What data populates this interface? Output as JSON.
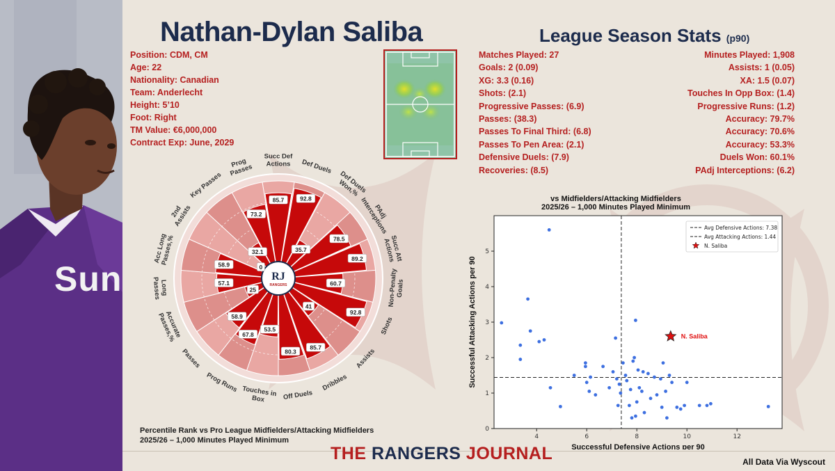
{
  "player": {
    "name": "Nathan-Dylan Saliba",
    "info": [
      "Position: CDM, CM",
      "Age: 22",
      "Nationality: Canadian",
      "Team: Anderlecht",
      "Height: 5’10",
      "Foot: Right",
      "TM Value: €6,000,000",
      "Contract Exp: June, 2029"
    ],
    "shirt_text": "Sun"
  },
  "season_stats": {
    "title": "League Season Stats",
    "unit": "(p90)",
    "left": [
      "Matches Played: 27",
      "Goals: 2 (0.09)",
      "XG: 3.3 (0.16)",
      "Shots: (2.1)",
      "Progressive Passes: (6.9)",
      "Passes: (38.3)",
      "Passes To Final Third: (6.8)",
      "Passes To Pen Area: (2.1)",
      "Defensive Duels: (7.9)",
      "Recoveries: (8.5)"
    ],
    "right": [
      "Minutes Played: 1,908",
      "Assists: 1 (0.05)",
      "XA: 1.5 (0.07)",
      "Touches In Opp Box: (1.4)",
      "Progressive Runs: (1.2)",
      "Accuracy: 79.7%",
      "Accuracy: 70.6%",
      "Accuracy: 53.3%",
      "Duels Won: 60.1%",
      "PAdj Interceptions: (6.2)"
    ]
  },
  "radar_caption": [
    "Percentile Rank vs Pro League Midfielders/Attacking Midfielders",
    "2025/26 – 1,000 Minutes Played Minimum"
  ],
  "scatter_caption": [
    "vs  Midfielders/Attacking Midfielders",
    "2025/26 – 1,000 Minutes Played Minimum"
  ],
  "brand": {
    "the": "THE ",
    "rangers": "RANGERS",
    "journal": " JOURNAL"
  },
  "logo": {
    "initials": "RJ",
    "sub1": "THE",
    "sub2": "RANGERS",
    "sub3": "JOURNAL"
  },
  "credit": "All Data Via Wyscout",
  "colors": {
    "navy": "#1c2b4c",
    "red": "#b51f1f",
    "radar_fill": "#c6090a",
    "radar_bg": "#e9a7a3",
    "radar_bg_alt": "#dd8f8b",
    "scatter_point": "#3d6fe0"
  },
  "chart_data": [
    {
      "type": "radar",
      "title": "",
      "range": [
        0,
        100
      ],
      "categories": [
        "Succ Def Actions",
        "Def Duels",
        "Def Duels Won,%",
        "PAdj Interceptions",
        "Succ Att Actions",
        "Non-Penalty Goals",
        "Shots",
        "Assists",
        "Dribbles",
        "Off Duels",
        "Touches in Box",
        "Prog Runs",
        "Passes",
        "Accurate Passes,%",
        "Long Passes",
        "Acc Long Passes,%",
        "2nd Assists",
        "Key Passes",
        "Prog Passes"
      ],
      "values": [
        85.7,
        92.8,
        35.7,
        78.5,
        89.2,
        60.7,
        92.8,
        41,
        85.7,
        80.3,
        53.5,
        67.8,
        58.9,
        25,
        57.1,
        58.9,
        0,
        32.1,
        73.2
      ]
    },
    {
      "type": "scatter",
      "xlabel": "Successful Defensive Actions per 90",
      "ylabel": "Successful Attacking Actions per 90",
      "xlim": [
        2.3,
        13.8
      ],
      "ylim": [
        0,
        6
      ],
      "xticks": [
        4,
        6,
        8,
        10,
        12
      ],
      "yticks": [
        0,
        1,
        2,
        3,
        4,
        5
      ],
      "reference_lines": [
        {
          "name": "Avg Defensive Actions: 7.38",
          "axis": "x",
          "value": 7.38
        },
        {
          "name": "Avg Attacking Actions: 1.44",
          "axis": "y",
          "value": 1.44
        }
      ],
      "highlight": {
        "name": "N. Saliba",
        "x": 9.35,
        "y": 2.6
      },
      "points": [
        [
          4.5,
          5.6
        ],
        [
          3.65,
          3.65
        ],
        [
          2.6,
          2.98
        ],
        [
          3.75,
          2.75
        ],
        [
          4.1,
          2.45
        ],
        [
          4.3,
          2.5
        ],
        [
          3.35,
          2.35
        ],
        [
          3.35,
          1.95
        ],
        [
          4.55,
          1.15
        ],
        [
          4.95,
          0.62
        ],
        [
          5.5,
          1.5
        ],
        [
          5.95,
          1.75
        ],
        [
          5.95,
          1.85
        ],
        [
          6.0,
          1.3
        ],
        [
          6.1,
          1.05
        ],
        [
          6.15,
          1.45
        ],
        [
          6.35,
          0.95
        ],
        [
          6.65,
          1.75
        ],
        [
          6.9,
          1.15
        ],
        [
          7.05,
          1.6
        ],
        [
          7.15,
          2.55
        ],
        [
          7.2,
          1.4
        ],
        [
          7.25,
          0.65
        ],
        [
          7.3,
          1.25
        ],
        [
          7.35,
          1.0
        ],
        [
          7.45,
          1.85
        ],
        [
          7.55,
          1.5
        ],
        [
          7.6,
          1.35
        ],
        [
          7.7,
          0.65
        ],
        [
          7.75,
          1.1
        ],
        [
          7.8,
          0.3
        ],
        [
          7.85,
          1.9
        ],
        [
          7.9,
          2.0
        ],
        [
          7.95,
          3.05
        ],
        [
          7.95,
          0.35
        ],
        [
          8.0,
          0.75
        ],
        [
          8.05,
          1.65
        ],
        [
          8.1,
          1.15
        ],
        [
          8.2,
          1.05
        ],
        [
          8.25,
          1.6
        ],
        [
          8.3,
          0.45
        ],
        [
          8.45,
          1.55
        ],
        [
          8.55,
          0.85
        ],
        [
          8.7,
          1.45
        ],
        [
          8.8,
          0.95
        ],
        [
          8.95,
          1.4
        ],
        [
          9.0,
          0.6
        ],
        [
          9.05,
          1.85
        ],
        [
          9.15,
          1.05
        ],
        [
          9.2,
          0.3
        ],
        [
          9.3,
          1.5
        ],
        [
          9.4,
          1.3
        ],
        [
          9.6,
          0.6
        ],
        [
          9.75,
          0.55
        ],
        [
          9.9,
          0.65
        ],
        [
          10.0,
          1.3
        ],
        [
          10.5,
          0.65
        ],
        [
          10.8,
          0.65
        ],
        [
          10.95,
          0.7
        ],
        [
          13.25,
          0.62
        ]
      ]
    }
  ]
}
